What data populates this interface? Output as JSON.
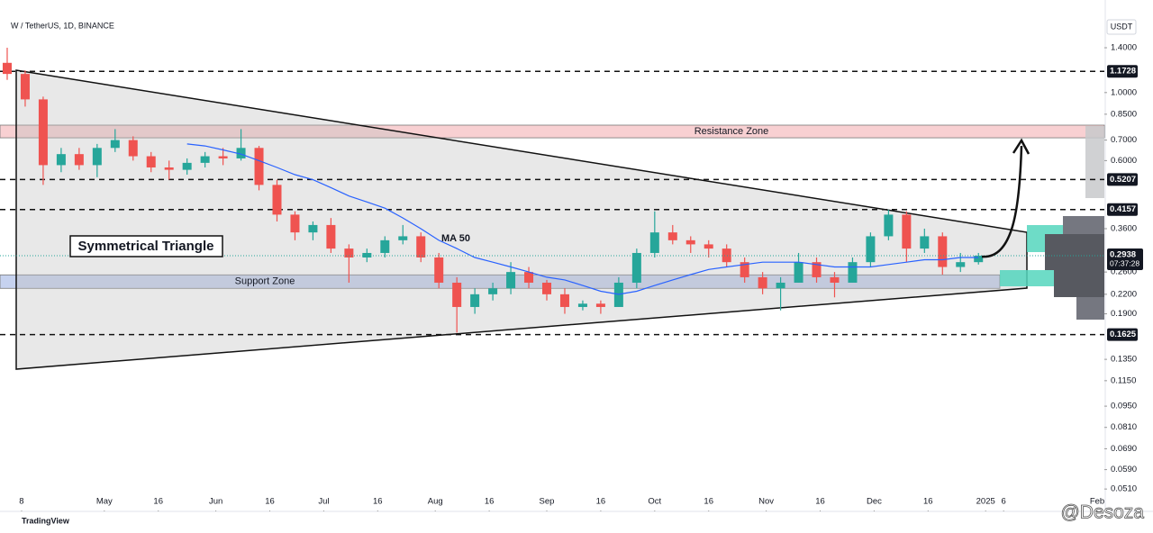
{
  "chart_data": {
    "type": "candlestick",
    "title": "W / TetherUS, 1D, BINANCE",
    "currency": "USDT",
    "x": [
      "2024-04-04",
      "2024-04-09",
      "2024-04-14",
      "2024-04-19",
      "2024-04-24",
      "2024-04-29",
      "2024-05-04",
      "2024-05-09",
      "2024-05-14",
      "2024-05-19",
      "2024-05-24",
      "2024-05-29",
      "2024-06-03",
      "2024-06-08",
      "2024-06-13",
      "2024-06-18",
      "2024-06-23",
      "2024-06-28",
      "2024-07-03",
      "2024-07-08",
      "2024-07-13",
      "2024-07-18",
      "2024-07-23",
      "2024-07-28",
      "2024-08-02",
      "2024-08-07",
      "2024-08-12",
      "2024-08-17",
      "2024-08-22",
      "2024-08-27",
      "2024-09-01",
      "2024-09-06",
      "2024-09-11",
      "2024-09-16",
      "2024-09-21",
      "2024-09-26",
      "2024-10-01",
      "2024-10-06",
      "2024-10-11",
      "2024-10-16",
      "2024-10-21",
      "2024-10-26",
      "2024-10-31",
      "2024-11-05",
      "2024-11-10",
      "2024-11-15",
      "2024-11-20",
      "2024-11-25",
      "2024-11-30",
      "2024-12-05",
      "2024-12-10",
      "2024-12-15",
      "2024-12-20",
      "2024-12-25",
      "2024-12-30"
    ],
    "open": [
      1.25,
      1.15,
      0.95,
      0.58,
      0.63,
      0.58,
      0.66,
      0.7,
      0.62,
      0.57,
      0.56,
      0.59,
      0.62,
      0.61,
      0.66,
      0.5,
      0.4,
      0.35,
      0.37,
      0.31,
      0.29,
      0.3,
      0.33,
      0.34,
      0.29,
      0.24,
      0.2,
      0.22,
      0.23,
      0.26,
      0.24,
      0.22,
      0.2,
      0.205,
      0.2,
      0.24,
      0.3,
      0.35,
      0.33,
      0.32,
      0.31,
      0.28,
      0.25,
      0.23,
      0.24,
      0.28,
      0.25,
      0.24,
      0.28,
      0.34,
      0.4,
      0.31,
      0.34,
      0.27,
      0.28
    ],
    "high": [
      1.4,
      1.18,
      0.97,
      0.66,
      0.66,
      0.68,
      0.76,
      0.72,
      0.64,
      0.6,
      0.61,
      0.64,
      0.66,
      0.76,
      0.67,
      0.52,
      0.41,
      0.38,
      0.39,
      0.32,
      0.31,
      0.34,
      0.37,
      0.35,
      0.3,
      0.25,
      0.23,
      0.24,
      0.28,
      0.27,
      0.245,
      0.23,
      0.21,
      0.21,
      0.25,
      0.31,
      0.41,
      0.37,
      0.34,
      0.33,
      0.32,
      0.29,
      0.26,
      0.25,
      0.3,
      0.29,
      0.26,
      0.29,
      0.35,
      0.415,
      0.41,
      0.36,
      0.35,
      0.3,
      0.3
    ],
    "low": [
      1.1,
      0.9,
      0.5,
      0.55,
      0.56,
      0.53,
      0.64,
      0.6,
      0.55,
      0.52,
      0.54,
      0.57,
      0.58,
      0.6,
      0.48,
      0.38,
      0.33,
      0.33,
      0.3,
      0.24,
      0.28,
      0.29,
      0.32,
      0.28,
      0.23,
      0.165,
      0.19,
      0.21,
      0.22,
      0.23,
      0.21,
      0.19,
      0.195,
      0.19,
      0.2,
      0.23,
      0.29,
      0.32,
      0.3,
      0.29,
      0.27,
      0.24,
      0.22,
      0.195,
      0.24,
      0.24,
      0.215,
      0.24,
      0.27,
      0.33,
      0.28,
      0.3,
      0.255,
      0.26,
      0.275
    ],
    "close": [
      1.15,
      0.95,
      0.58,
      0.63,
      0.58,
      0.66,
      0.7,
      0.62,
      0.57,
      0.56,
      0.59,
      0.62,
      0.61,
      0.66,
      0.5,
      0.4,
      0.35,
      0.37,
      0.31,
      0.29,
      0.3,
      0.33,
      0.34,
      0.29,
      0.24,
      0.2,
      0.22,
      0.23,
      0.26,
      0.24,
      0.22,
      0.2,
      0.205,
      0.2,
      0.24,
      0.3,
      0.35,
      0.33,
      0.32,
      0.31,
      0.28,
      0.25,
      0.23,
      0.24,
      0.28,
      0.25,
      0.24,
      0.28,
      0.34,
      0.4,
      0.31,
      0.34,
      0.27,
      0.28,
      0.2938
    ],
    "up_color": "#26a69a",
    "down_color": "#ef5350",
    "ma50": {
      "name": "MA 50",
      "color": "#2962ff",
      "values": [
        null,
        null,
        null,
        null,
        null,
        null,
        null,
        null,
        null,
        null,
        0.68,
        0.67,
        0.65,
        0.63,
        0.6,
        0.57,
        0.54,
        0.52,
        0.49,
        0.46,
        0.44,
        0.42,
        0.39,
        0.36,
        0.33,
        0.31,
        0.29,
        0.28,
        0.27,
        0.26,
        0.25,
        0.245,
        0.235,
        0.225,
        0.22,
        0.225,
        0.235,
        0.245,
        0.255,
        0.265,
        0.27,
        0.275,
        0.28,
        0.28,
        0.28,
        0.275,
        0.27,
        0.27,
        0.27,
        0.275,
        0.28,
        0.285,
        0.285,
        0.29,
        0.29
      ]
    },
    "log_scale": true,
    "grid": false,
    "ylim": [
      0.044,
      1.75
    ],
    "yticks": [
      {
        "value": 1.4,
        "label": "1.4000"
      },
      {
        "value": 1.0,
        "label": "1.0000"
      },
      {
        "value": 0.85,
        "label": "0.8500"
      },
      {
        "value": 0.7,
        "label": "0.7000"
      },
      {
        "value": 0.6,
        "label": "0.6000"
      },
      {
        "value": 0.36,
        "label": "0.3600"
      },
      {
        "value": 0.26,
        "label": "0.2600"
      },
      {
        "value": 0.22,
        "label": "0.2200"
      },
      {
        "value": 0.19,
        "label": "0.1900"
      },
      {
        "value": 0.135,
        "label": "0.1350"
      },
      {
        "value": 0.115,
        "label": "0.1150"
      },
      {
        "value": 0.095,
        "label": "0.0950"
      },
      {
        "value": 0.081,
        "label": "0.0810"
      },
      {
        "value": 0.069,
        "label": "0.0690"
      },
      {
        "value": 0.059,
        "label": "0.0590"
      },
      {
        "value": 0.051,
        "label": "0.0510"
      }
    ],
    "xlim": [
      "2024-04-02",
      "2025-02-03"
    ],
    "xticks": [
      {
        "value": "2024-04-08",
        "label": "8"
      },
      {
        "value": "2024-05-01",
        "label": "May"
      },
      {
        "value": "2024-05-16",
        "label": "16"
      },
      {
        "value": "2024-06-01",
        "label": "Jun"
      },
      {
        "value": "2024-06-16",
        "label": "16"
      },
      {
        "value": "2024-07-01",
        "label": "Jul"
      },
      {
        "value": "2024-07-16",
        "label": "16"
      },
      {
        "value": "2024-08-01",
        "label": "Aug"
      },
      {
        "value": "2024-08-16",
        "label": "16"
      },
      {
        "value": "2024-09-01",
        "label": "Sep"
      },
      {
        "value": "2024-09-16",
        "label": "16"
      },
      {
        "value": "2024-10-01",
        "label": "Oct"
      },
      {
        "value": "2024-10-16",
        "label": "16"
      },
      {
        "value": "2024-11-01",
        "label": "Nov"
      },
      {
        "value": "2024-11-16",
        "label": "16"
      },
      {
        "value": "2024-12-01",
        "label": "Dec"
      },
      {
        "value": "2024-12-16",
        "label": "16"
      },
      {
        "value": "2025-01-01",
        "label": "2025"
      },
      {
        "value": "2025-01-06",
        "label": "6"
      },
      {
        "value": "2025-02-01",
        "label": "Feb"
      }
    ],
    "levels": [
      1.1728,
      0.5207,
      0.4157,
      0.1625
    ],
    "last_price": {
      "value": 0.2938,
      "countdown": "07:37:28"
    },
    "zones": [
      {
        "label": "Resistance Zone",
        "range": [
          0.712,
          0.783
        ],
        "color": "#f7c5c8"
      },
      {
        "label": "Support Zone",
        "range": [
          0.23,
          0.2545
        ],
        "color": "#b9c7ec"
      }
    ],
    "pattern_label": "Symmetrical Triangle"
  },
  "footer": {
    "brand": "TradingView",
    "watermark": "@Desoza"
  }
}
